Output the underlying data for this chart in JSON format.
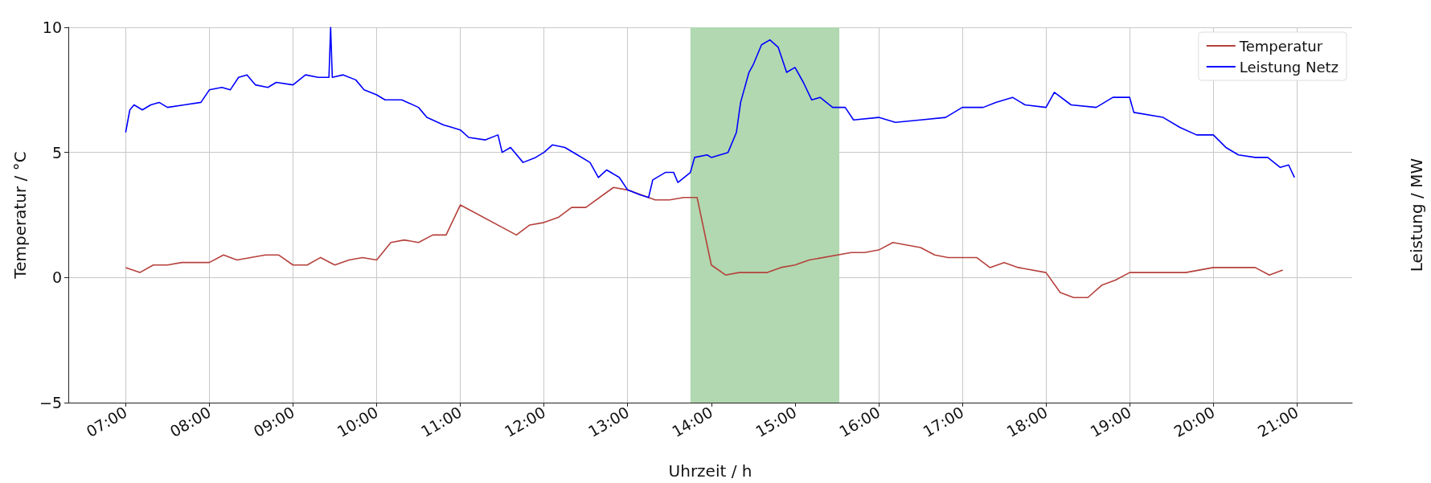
{
  "chart_data": {
    "type": "line",
    "xlabel": "Uhrzeit / h",
    "ylabel": "Temperatur / °C",
    "y2label": "Leistung / MW",
    "xlim": [
      6.315,
      21.66
    ],
    "xticks": [
      {
        "value": 7,
        "label": "07:00"
      },
      {
        "value": 8,
        "label": "08:00"
      },
      {
        "value": 9,
        "label": "09:00"
      },
      {
        "value": 10,
        "label": "10:00"
      },
      {
        "value": 11,
        "label": "11:00"
      },
      {
        "value": 12,
        "label": "12:00"
      },
      {
        "value": 13,
        "label": "13:00"
      },
      {
        "value": 14,
        "label": "14:00"
      },
      {
        "value": 15,
        "label": "15:00"
      },
      {
        "value": 16,
        "label": "16:00"
      },
      {
        "value": 17,
        "label": "17:00"
      },
      {
        "value": 18,
        "label": "18:00"
      },
      {
        "value": 19,
        "label": "19:00"
      },
      {
        "value": 20,
        "label": "20:00"
      },
      {
        "value": 21,
        "label": "21:00"
      }
    ],
    "ylim": [
      -5,
      10
    ],
    "yticks": [
      -5,
      0,
      5,
      10
    ],
    "grid": true,
    "legend": "top right",
    "line_style": "solid",
    "marker": "none",
    "bands": [
      {
        "axis": "x",
        "from": 13.75,
        "to": 15.53,
        "color": "#b1d8b0"
      }
    ],
    "series": [
      {
        "name": "Temperatur",
        "color": "#b5413c",
        "x": [
          7.0,
          7.17,
          7.33,
          7.5,
          7.67,
          8.0,
          8.17,
          8.33,
          8.67,
          8.83,
          9.0,
          9.17,
          9.33,
          9.5,
          9.67,
          9.83,
          10.0,
          10.17,
          10.33,
          10.5,
          10.67,
          10.83,
          11.0,
          11.67,
          11.83,
          12.0,
          12.17,
          12.33,
          12.5,
          12.83,
          13.0,
          13.33,
          13.5,
          13.67,
          13.83,
          14.0,
          14.17,
          14.33,
          14.67,
          14.83,
          15.0,
          15.17,
          15.67,
          15.83,
          16.0,
          16.17,
          16.5,
          16.67,
          16.83,
          17.17,
          17.33,
          17.5,
          17.67,
          18.0,
          18.17,
          18.33,
          18.5,
          18.67,
          18.83,
          19.0,
          19.67,
          20.0,
          20.5,
          20.67,
          20.83
        ],
        "values": [
          0.4,
          0.2,
          0.5,
          0.5,
          0.6,
          0.6,
          0.9,
          0.7,
          0.9,
          0.9,
          0.5,
          0.5,
          0.8,
          0.5,
          0.7,
          0.8,
          0.7,
          1.4,
          1.5,
          1.4,
          1.7,
          1.7,
          2.9,
          1.7,
          2.1,
          2.2,
          2.4,
          2.8,
          2.8,
          3.6,
          3.5,
          3.1,
          3.1,
          3.2,
          3.2,
          0.5,
          0.1,
          0.2,
          0.2,
          0.4,
          0.5,
          0.7,
          1.0,
          1.0,
          1.1,
          1.4,
          1.2,
          0.9,
          0.8,
          0.8,
          0.4,
          0.6,
          0.4,
          0.2,
          -0.6,
          -0.8,
          -0.8,
          -0.3,
          -0.1,
          0.2,
          0.2,
          0.4,
          0.4,
          0.1,
          0.3
        ]
      },
      {
        "name": "Leistung Netz",
        "color": "#0000ff",
        "x": [
          7.0,
          7.05,
          7.1,
          7.2,
          7.3,
          7.4,
          7.5,
          7.7,
          7.9,
          8.0,
          8.15,
          8.25,
          8.35,
          8.45,
          8.55,
          8.7,
          8.8,
          9.0,
          9.15,
          9.3,
          9.43,
          9.45,
          9.47,
          9.6,
          9.75,
          9.85,
          10.0,
          10.1,
          10.3,
          10.5,
          10.6,
          10.8,
          10.9,
          11.0,
          11.1,
          11.3,
          11.45,
          11.5,
          11.6,
          11.75,
          11.9,
          12.0,
          12.1,
          12.25,
          12.4,
          12.55,
          12.65,
          12.75,
          12.9,
          13.0,
          13.15,
          13.25,
          13.3,
          13.45,
          13.55,
          13.6,
          13.75,
          13.8,
          13.95,
          14.0,
          14.2,
          14.3,
          14.35,
          14.45,
          14.5,
          14.6,
          14.7,
          14.8,
          14.9,
          15.0,
          15.1,
          15.2,
          15.3,
          15.45,
          15.6,
          15.7,
          16.0,
          16.2,
          16.5,
          16.8,
          17.0,
          17.25,
          17.4,
          17.6,
          17.75,
          18.0,
          18.1,
          18.3,
          18.6,
          18.8,
          19.0,
          19.05,
          19.4,
          19.6,
          19.8,
          20.0,
          20.15,
          20.3,
          20.5,
          20.65,
          20.8,
          20.9,
          20.97
        ],
        "values": [
          5.8,
          6.7,
          6.9,
          6.7,
          6.9,
          7.0,
          6.8,
          6.9,
          7.0,
          7.5,
          7.6,
          7.5,
          8.0,
          8.1,
          7.7,
          7.6,
          7.8,
          7.7,
          8.1,
          8.0,
          8.0,
          10.0,
          8.0,
          8.1,
          7.9,
          7.5,
          7.3,
          7.1,
          7.1,
          6.8,
          6.4,
          6.1,
          6.0,
          5.9,
          5.6,
          5.5,
          5.7,
          5.0,
          5.2,
          4.6,
          4.8,
          5.0,
          5.3,
          5.2,
          4.9,
          4.6,
          4.0,
          4.3,
          4.0,
          3.5,
          3.3,
          3.2,
          3.9,
          4.2,
          4.2,
          3.8,
          4.2,
          4.8,
          4.9,
          4.8,
          5.0,
          5.8,
          7.0,
          8.2,
          8.5,
          9.3,
          9.5,
          9.2,
          8.2,
          8.4,
          7.8,
          7.1,
          7.2,
          6.8,
          6.8,
          6.3,
          6.4,
          6.2,
          6.3,
          6.4,
          6.8,
          6.8,
          7.0,
          7.2,
          6.9,
          6.8,
          7.4,
          6.9,
          6.8,
          7.2,
          7.2,
          6.6,
          6.4,
          6.0,
          5.7,
          5.7,
          5.2,
          4.9,
          4.8,
          4.8,
          4.4,
          4.5,
          4.0
        ]
      }
    ]
  }
}
